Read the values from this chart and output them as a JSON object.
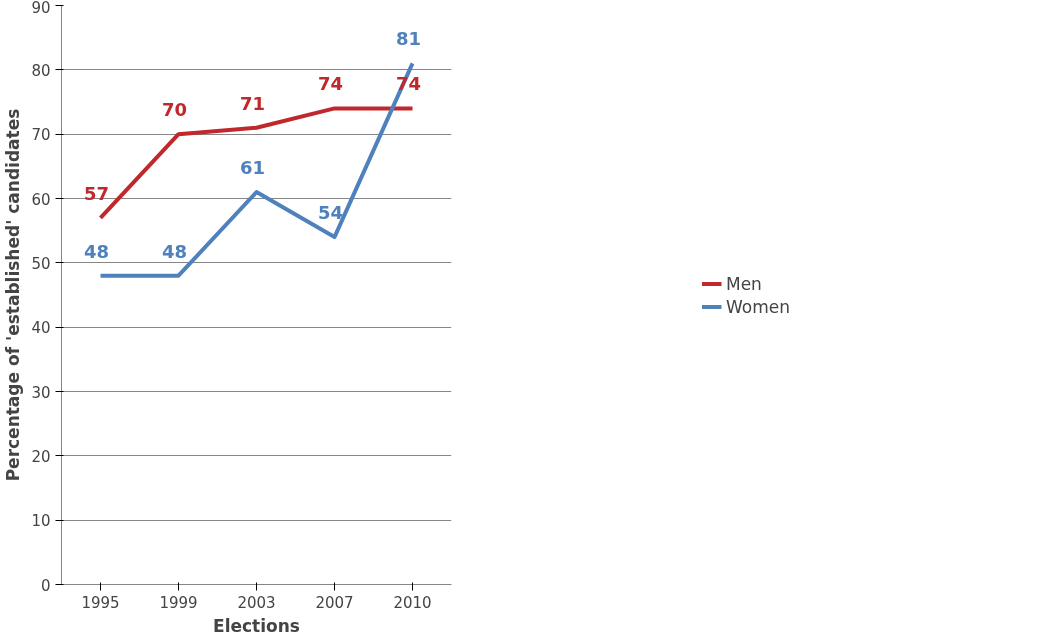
{
  "chart_data": {
    "type": "line",
    "xlabel": "Elections",
    "ylabel": "Percentage of 'established' candidates",
    "categories": [
      "1995",
      "1999",
      "2003",
      "2007",
      "2010"
    ],
    "series": [
      {
        "name": "Men",
        "color": "#c0282b",
        "values": [
          57,
          70,
          71,
          74,
          74
        ]
      },
      {
        "name": "Women",
        "color": "#4f81bd",
        "values": [
          48,
          48,
          61,
          54,
          81
        ]
      }
    ],
    "ylim": [
      0,
      90
    ],
    "yticks": [
      0,
      10,
      20,
      30,
      40,
      50,
      60,
      70,
      80,
      90
    ],
    "grid": "y",
    "legend": "right",
    "marker": "none",
    "line_style": "solid",
    "data_labels": true
  }
}
